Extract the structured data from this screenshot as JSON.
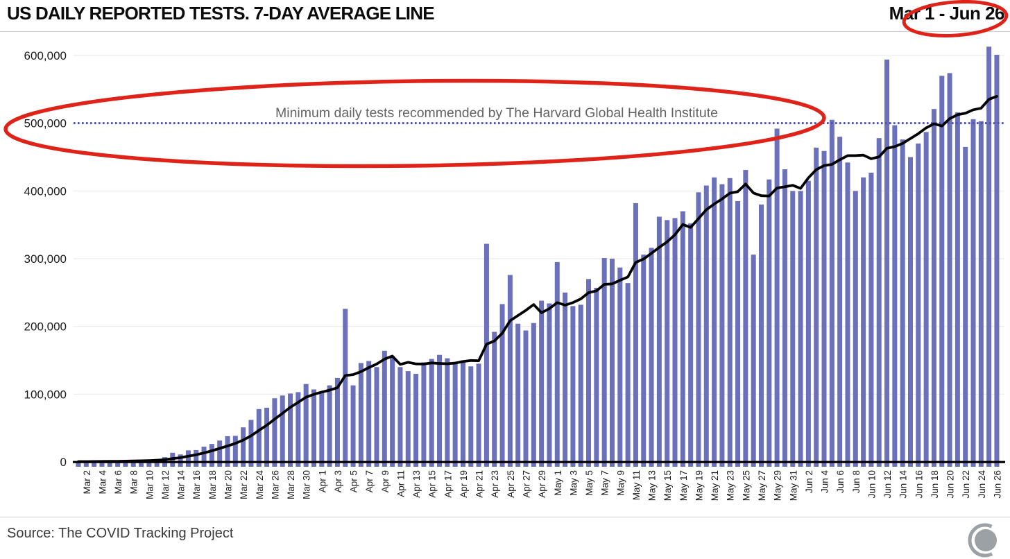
{
  "header": {
    "title": "US DAILY REPORTED TESTS. 7-DAY AVERAGE LINE",
    "date_range": "Mar 1 - Jun 26"
  },
  "footer": {
    "source": "Source: The COVID Tracking Project"
  },
  "colors": {
    "bar": "#6a70b9",
    "avg_line": "#000000",
    "threshold_line": "#5153a6",
    "grid": "#e9e9e9",
    "axis_line": "#000000",
    "tick_text": "#1c1c1c",
    "annotation_text": "#636363",
    "annotation_red": "#e02318",
    "logo_gray": "#9ba1a5"
  },
  "chart_data": {
    "type": "bar",
    "title": "US DAILY REPORTED TESTS. 7-DAY AVERAGE LINE",
    "date_range": "Mar 1 - Jun 26",
    "ylabel": "",
    "xlabel": "",
    "ylim": [
      0,
      620000
    ],
    "yticks": [
      0,
      100000,
      200000,
      300000,
      400000,
      500000,
      600000
    ],
    "grid": "horizontal",
    "x_tick_every": 2,
    "overlay_line": "7-day trailing average",
    "threshold": {
      "value": 500000,
      "label": "Minimum daily tests recommended by The Harvard Global Health Institute"
    },
    "categories": [
      "Mar 1",
      "Mar 2",
      "Mar 3",
      "Mar 4",
      "Mar 5",
      "Mar 6",
      "Mar 7",
      "Mar 8",
      "Mar 9",
      "Mar 10",
      "Mar 11",
      "Mar 12",
      "Mar 13",
      "Mar 14",
      "Mar 15",
      "Mar 16",
      "Mar 17",
      "Mar 18",
      "Mar 19",
      "Mar 20",
      "Mar 21",
      "Mar 22",
      "Mar 23",
      "Mar 24",
      "Mar 25",
      "Mar 26",
      "Mar 27",
      "Mar 28",
      "Mar 29",
      "Mar 30",
      "Mar 31",
      "Apr 1",
      "Apr 2",
      "Apr 3",
      "Apr 4",
      "Apr 5",
      "Apr 6",
      "Apr 7",
      "Apr 8",
      "Apr 9",
      "Apr 10",
      "Apr 11",
      "Apr 12",
      "Apr 13",
      "Apr 14",
      "Apr 15",
      "Apr 16",
      "Apr 17",
      "Apr 18",
      "Apr 19",
      "Apr 20",
      "Apr 21",
      "Apr 22",
      "Apr 23",
      "Apr 24",
      "Apr 25",
      "Apr 26",
      "Apr 27",
      "Apr 28",
      "Apr 29",
      "Apr 30",
      "May 1",
      "May 2",
      "May 3",
      "May 4",
      "May 5",
      "May 6",
      "May 7",
      "May 8",
      "May 9",
      "May 10",
      "May 11",
      "May 12",
      "May 13",
      "May 14",
      "May 15",
      "May 16",
      "May 17",
      "May 18",
      "May 19",
      "May 20",
      "May 21",
      "May 22",
      "May 23",
      "May 24",
      "May 25",
      "May 26",
      "May 27",
      "May 28",
      "May 29",
      "May 30",
      "May 31",
      "Jun 1",
      "Jun 2",
      "Jun 3",
      "Jun 4",
      "Jun 5",
      "Jun 6",
      "Jun 7",
      "Jun 8",
      "Jun 9",
      "Jun 10",
      "Jun 11",
      "Jun 12",
      "Jun 13",
      "Jun 14",
      "Jun 15",
      "Jun 16",
      "Jun 17",
      "Jun 18",
      "Jun 19",
      "Jun 20",
      "Jun 21",
      "Jun 22",
      "Jun 23",
      "Jun 24",
      "Jun 25",
      "Jun 26"
    ],
    "values": [
      500,
      600,
      800,
      1000,
      1300,
      1600,
      2000,
      2000,
      2500,
      3000,
      4500,
      7000,
      13500,
      11000,
      17000,
      17500,
      22500,
      26500,
      31500,
      38000,
      38500,
      51000,
      62000,
      78000,
      80000,
      94000,
      98000,
      101000,
      103000,
      115000,
      107000,
      104000,
      113000,
      124000,
      226000,
      113000,
      146000,
      149000,
      140000,
      164000,
      156000,
      140000,
      134000,
      130000,
      147000,
      152000,
      158000,
      153000,
      147000,
      150000,
      141000,
      145000,
      322000,
      192000,
      233000,
      276000,
      204000,
      194000,
      205000,
      238000,
      234000,
      295000,
      250000,
      230000,
      232000,
      270000,
      257000,
      301000,
      300000,
      287000,
      264000,
      382000,
      306000,
      316000,
      362000,
      357000,
      360000,
      370000,
      352000,
      398000,
      408000,
      420000,
      410000,
      419000,
      385000,
      431000,
      306000,
      380000,
      417000,
      492000,
      432000,
      400000,
      400000,
      415000,
      464000,
      459000,
      505000,
      480000,
      442000,
      400000,
      420000,
      427000,
      478000,
      594000,
      497000,
      476000,
      450000,
      470000,
      487000,
      521000,
      570000,
      574000,
      516000,
      465000,
      506000,
      503000,
      613000,
      601000
    ]
  }
}
